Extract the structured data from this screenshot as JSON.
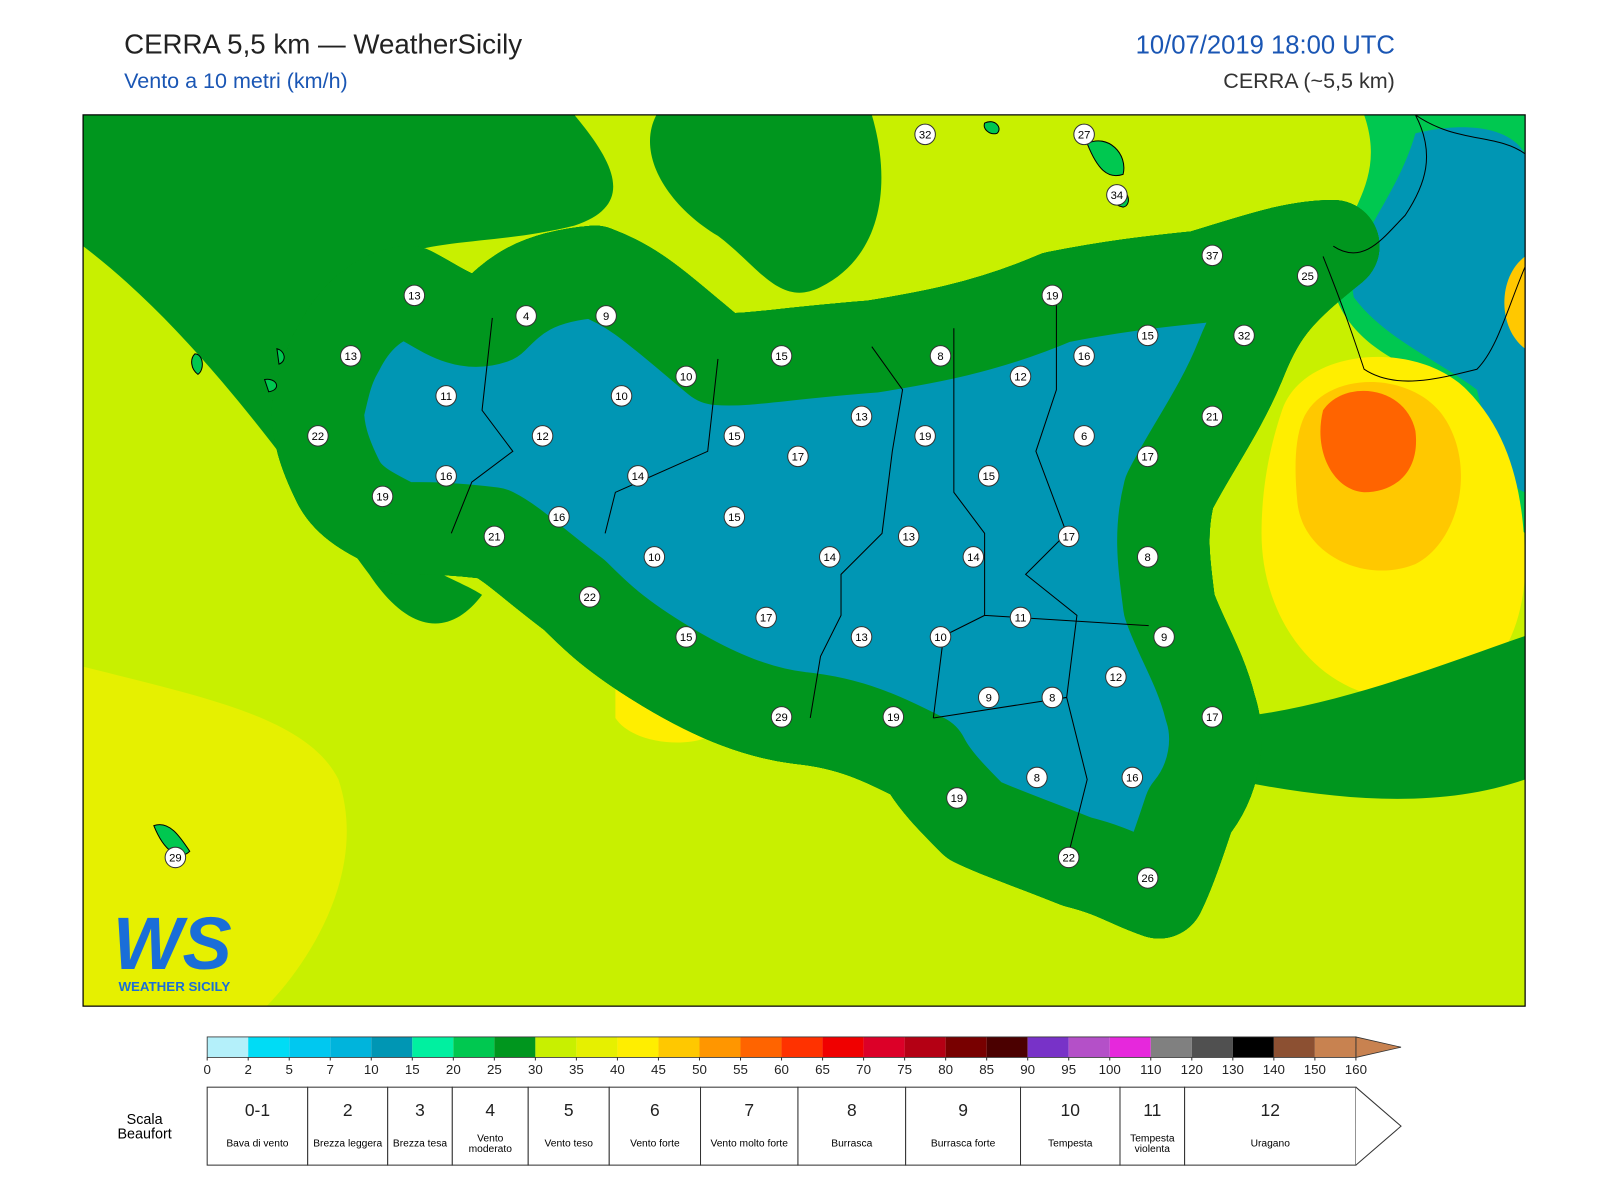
{
  "header": {
    "title": "CERRA 5,5 km — WeatherSicily",
    "subtitle": "Vento a 10 metri (km/h)",
    "datetime": "10/07/2019 18:00 UTC",
    "model": "CERRA (~5,5 km)"
  },
  "stations": [
    32,
    27,
    34,
    37,
    25,
    19,
    13,
    4,
    9,
    13,
    32,
    15,
    15,
    8,
    16,
    12,
    10,
    11,
    10,
    21,
    13,
    22,
    12,
    15,
    19,
    6,
    17,
    17,
    16,
    14,
    15,
    19,
    16,
    15,
    21,
    13,
    17,
    10,
    14,
    14,
    8,
    22,
    11,
    17,
    15,
    13,
    10,
    9,
    12,
    9,
    8,
    29,
    19,
    17,
    8,
    16,
    19,
    29,
    22,
    26
  ],
  "colorbar": {
    "ticks": [
      0,
      2,
      5,
      7,
      10,
      15,
      20,
      25,
      30,
      35,
      40,
      45,
      50,
      55,
      60,
      65,
      70,
      75,
      80,
      85,
      90,
      95,
      100,
      110,
      120,
      130,
      140,
      150,
      160
    ],
    "colors": [
      "#b4f0fa",
      "#00dcf5",
      "#00c8f0",
      "#00b4dc",
      "#0096b4",
      "#00f0a0",
      "#00c850",
      "#00961e",
      "#c8f000",
      "#e6f000",
      "#ffee00",
      "#ffc800",
      "#ff9600",
      "#ff6400",
      "#ff3200",
      "#f00000",
      "#dc0028",
      "#b40014",
      "#780000",
      "#4b0000",
      "#7832c8",
      "#b450c8",
      "#e628dc",
      "#808080",
      "#505050",
      "#000000",
      "#8c5032",
      "#c88250"
    ]
  },
  "beaufort": {
    "title": "Scala Beaufort",
    "levels": [
      {
        "force": "0-1",
        "description": "Bava di vento"
      },
      {
        "force": 2,
        "description": "Brezza leggera"
      },
      {
        "force": 3,
        "description": "Brezza tesa"
      },
      {
        "force": 4,
        "description": "Vento moderato"
      },
      {
        "force": 5,
        "description": "Vento teso"
      },
      {
        "force": 6,
        "description": "Vento forte"
      },
      {
        "force": 7,
        "description": "Vento molto forte"
      },
      {
        "force": 8,
        "description": "Burrasca"
      },
      {
        "force": 9,
        "description": "Burrasca forte"
      },
      {
        "force": 10,
        "description": "Tempesta"
      },
      {
        "force": 11,
        "description": "Tempesta violenta"
      },
      {
        "force": 12,
        "description": "Uragano"
      }
    ]
  },
  "logo": {
    "mark": "WS",
    "name": "WEATHER SICILY"
  }
}
